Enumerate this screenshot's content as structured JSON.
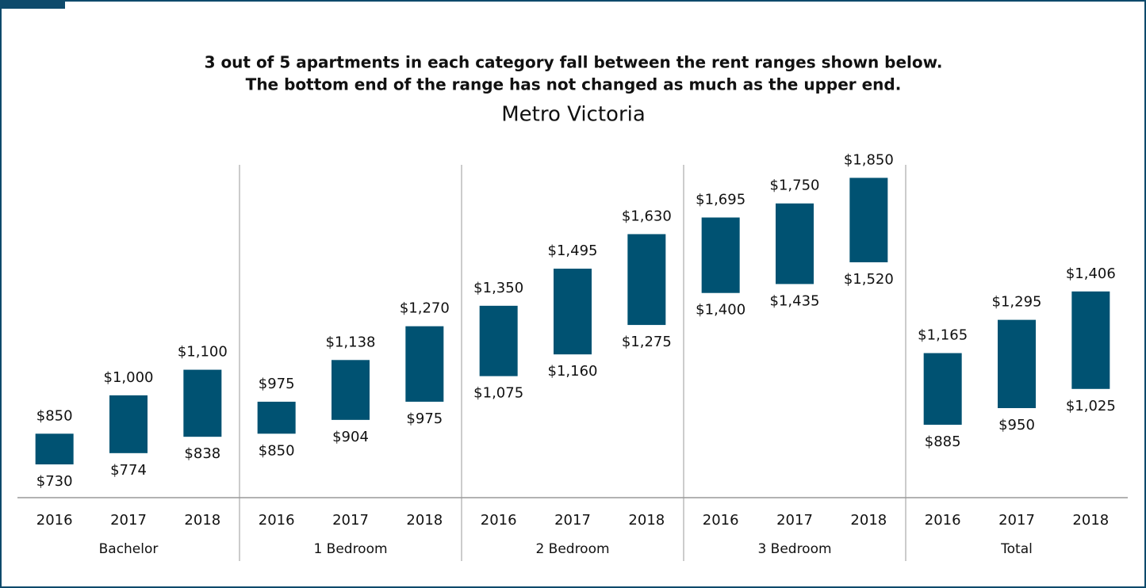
{
  "chart_data": {
    "type": "floating_bar",
    "headline": [
      "3 out of 5 apartments in each category fall between the rent ranges shown below.",
      "The bottom end of the range has not changed as much as the upper end."
    ],
    "title": "Metro Victoria",
    "color": "#005272",
    "ylim": [
      600,
      2000
    ],
    "groups": [
      {
        "name": "Bachelor",
        "categories": [
          "2016",
          "2017",
          "2018"
        ],
        "low": [
          730,
          774,
          838
        ],
        "high": [
          850,
          1000,
          1100
        ],
        "low_value_labels": [
          "$730",
          "$774",
          "$838"
        ],
        "high_value_labels": [
          "$850",
          "$1,000",
          "$1,100"
        ]
      },
      {
        "name": "1 Bedroom",
        "categories": [
          "2016",
          "2017",
          "2018"
        ],
        "low": [
          850,
          904,
          975
        ],
        "high": [
          975,
          1138,
          1270
        ],
        "low_value_labels": [
          "$850",
          "$904",
          "$975"
        ],
        "high_value_labels": [
          "$975",
          "$1,138",
          "$1,270"
        ]
      },
      {
        "name": "2 Bedroom",
        "categories": [
          "2016",
          "2017",
          "2018"
        ],
        "low": [
          1075,
          1160,
          1275
        ],
        "high": [
          1350,
          1495,
          1630
        ],
        "low_value_labels": [
          "$1,075",
          "$1,160",
          "$1,275"
        ],
        "high_value_labels": [
          "$1,350",
          "$1,495",
          "$1,630"
        ]
      },
      {
        "name": "3 Bedroom",
        "categories": [
          "2016",
          "2017",
          "2018"
        ],
        "low": [
          1400,
          1435,
          1520
        ],
        "high": [
          1695,
          1750,
          1850
        ],
        "low_value_labels": [
          "$1,400",
          "$1,435",
          "$1,520"
        ],
        "high_value_labels": [
          "$1,695",
          "$1,750",
          "$1,850"
        ]
      },
      {
        "name": "Total",
        "categories": [
          "2016",
          "2017",
          "2018"
        ],
        "low": [
          885,
          950,
          1025
        ],
        "high": [
          1165,
          1295,
          1406
        ],
        "low_value_labels": [
          "$885",
          "$950",
          "$1,025"
        ],
        "high_value_labels": [
          "$1,165",
          "$1,295",
          "$1,406"
        ]
      }
    ]
  }
}
